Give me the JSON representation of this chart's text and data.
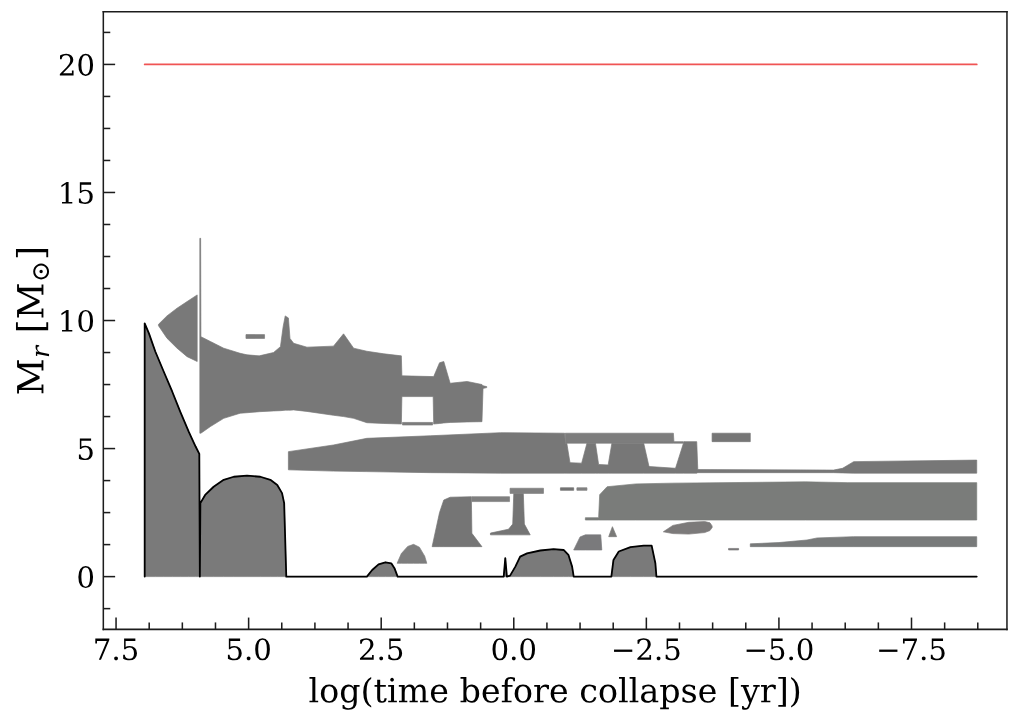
{
  "chart_data": {
    "type": "area",
    "xlabel": "log(time before collapse [yr])",
    "ylabel": "M$_{r}$ [M$_{⊙}$]",
    "xlim": [
      7.74,
      -9.3
    ],
    "ylim": [
      -2.06,
      22.06
    ],
    "xticks": [
      {
        "value": 7.5,
        "label": "7.5"
      },
      {
        "value": 5,
        "label": "5.0"
      },
      {
        "value": 2.5,
        "label": "2.5"
      },
      {
        "value": 0,
        "label": "0.0"
      },
      {
        "value": -2.5,
        "label": "−2.5"
      },
      {
        "value": -5,
        "label": "−5.0"
      },
      {
        "value": -7.5,
        "label": "−7.5"
      }
    ],
    "yticks": [
      0,
      5,
      10,
      15,
      20
    ],
    "series": [
      {
        "color": "#7a7a7a",
        "x": [
          6.96,
          6.96,
          6.88,
          6.76,
          6.6,
          6.44,
          6.29,
          6.13,
          6.0,
          5.93,
          5.92,
          5.91,
          5.82,
          5.66,
          5.47,
          5.28,
          5.03,
          4.78,
          4.59,
          4.46,
          4.37,
          4.33,
          4.29,
          2.77,
          2.67,
          2.55,
          2.42,
          2.31,
          2.25,
          2.19,
          0.19,
          0.16,
          0.13,
          0.07,
          -0.03,
          -0.12,
          -0.25,
          -0.5,
          -0.75,
          -0.94,
          -1.03,
          -1.1,
          -1.13,
          -1.84,
          -1.88,
          -1.98,
          -2.2,
          -2.45,
          -2.6,
          -2.67,
          -2.69,
          -8.73
        ],
        "values": [
          null,
          null,
          null,
          null,
          null,
          null,
          null,
          null,
          null,
          null,
          null,
          null,
          null,
          null,
          null,
          null,
          null,
          null,
          null,
          null,
          null,
          null,
          null,
          null,
          null,
          null,
          null,
          null,
          null,
          null,
          null,
          null,
          null,
          null,
          null,
          null,
          null,
          null,
          null,
          null,
          null,
          null,
          null,
          null,
          null,
          null,
          null,
          null,
          null,
          null,
          null,
          null
        ],
        "lower": [
          0,
          0,
          0,
          0,
          0,
          0,
          0,
          0,
          0,
          0,
          0,
          0,
          0,
          0,
          0,
          0,
          0,
          0,
          0,
          0,
          0,
          0,
          0,
          0,
          0,
          0,
          0,
          0,
          0,
          0,
          0,
          0,
          0,
          0,
          0,
          0,
          0,
          0,
          0,
          0,
          0,
          0,
          0,
          0,
          0,
          0,
          0,
          0,
          0,
          0,
          0,
          0
        ],
        "upper": [
          0,
          9.89,
          9.5,
          8.79,
          8.0,
          7.22,
          6.44,
          5.66,
          5.08,
          4.79,
          0,
          2.87,
          3.19,
          3.51,
          3.78,
          3.9,
          3.94,
          3.9,
          3.78,
          3.58,
          3.26,
          2.87,
          0,
          0,
          0.26,
          0.48,
          0.56,
          0.52,
          0.33,
          0,
          0,
          0.72,
          0,
          0.04,
          0.39,
          0.78,
          0.91,
          1.02,
          1.07,
          1.04,
          0.85,
          0.39,
          0,
          0,
          0.65,
          0.98,
          1.15,
          1.21,
          1.21,
          0.52,
          0,
          0
        ]
      },
      {
        "color": "#797979",
        "x": [
          6.7,
          6.54,
          6.35,
          6.16,
          5.97
        ],
        "values": [
          null,
          null,
          null,
          null,
          null
        ],
        "lower": [
          9.8,
          9.31,
          8.92,
          8.59,
          8.4
        ],
        "upper": [
          9.85,
          10.18,
          10.48,
          10.74,
          11.0
        ]
      },
      {
        "color": "#787878",
        "x": [
          5.92,
          5.905,
          5.9,
          5.72,
          5.47,
          5.16,
          5.03,
          4.8,
          4.53,
          4.4,
          4.35,
          4.31,
          4.25,
          4.22,
          4.15,
          3.9,
          3.4,
          3.21,
          3.02,
          2.77,
          2.45,
          2.12,
          2.11,
          1.52,
          1.51,
          1.4,
          1.32,
          1.2,
          0.88,
          0.6,
          0.58,
          0.51
        ],
        "values": [
          null,
          null,
          null,
          null,
          null,
          null,
          null,
          null,
          null,
          null,
          null,
          null,
          null,
          null,
          null,
          null,
          null,
          null,
          null,
          null,
          null,
          null,
          null,
          null,
          null,
          null,
          null,
          null,
          null,
          null,
          null,
          null
        ],
        "lower": [
          5.6,
          5.6,
          5.6,
          5.86,
          6.18,
          6.38,
          6.4,
          6.44,
          6.47,
          6.48,
          6.49,
          6.5,
          6.5,
          6.5,
          6.51,
          6.45,
          6.3,
          6.25,
          6.18,
          6.01,
          5.98,
          5.96,
          7.03,
          7.03,
          5.96,
          5.98,
          6.0,
          6.02,
          6.04,
          6.05,
          7.35,
          7.38
        ],
        "upper": [
          13.21,
          13.21,
          9.37,
          9.18,
          8.92,
          8.72,
          8.66,
          8.62,
          8.75,
          8.98,
          9.75,
          10.18,
          10.1,
          9.3,
          9.11,
          8.96,
          9.0,
          9.48,
          8.92,
          8.8,
          8.7,
          8.62,
          7.84,
          7.81,
          7.81,
          8.35,
          8.4,
          7.55,
          7.62,
          7.5,
          7.45,
          7.42
        ]
      },
      {
        "color": "#7b7b7b",
        "x": [
          5.05,
          4.7
        ],
        "values": [
          null,
          null
        ],
        "lower": [
          9.3,
          9.3
        ],
        "upper": [
          9.45,
          9.45
        ]
      },
      {
        "color": "#7c7c7c",
        "x": [
          2.1,
          1.53
        ],
        "values": [
          null,
          null
        ],
        "lower": [
          5.92,
          5.92
        ],
        "upper": [
          6.02,
          6.02
        ]
      },
      {
        "color": "#777777",
        "x": [
          4.25,
          3.4,
          2.77,
          1.57,
          0.25,
          -0.96,
          -0.97,
          -1.0,
          -1.06,
          -1.28,
          -1.38,
          -1.54,
          -1.6,
          -1.78,
          -1.85,
          -2.45,
          -2.55,
          -3.05,
          -3.2,
          -3.21,
          -3.45,
          -3.47,
          -6.03,
          -6.2,
          -6.41,
          -8.73
        ],
        "values": [
          null,
          null,
          null,
          null,
          null,
          null,
          null,
          null,
          null,
          null,
          null,
          null,
          null,
          null,
          null,
          null,
          null,
          null,
          null,
          null,
          null,
          null,
          null,
          null,
          null,
          null
        ],
        "lower": [
          4.17,
          4.12,
          4.1,
          4.06,
          4.04,
          4.04,
          4.04,
          4.04,
          4.04,
          4.04,
          4.04,
          4.04,
          4.04,
          4.04,
          4.04,
          4.04,
          4.04,
          4.04,
          4.04,
          4.04,
          4.04,
          4.06,
          4.06,
          4.05,
          4.04,
          4.04
        ],
        "upper": [
          4.88,
          5.14,
          5.4,
          5.5,
          5.62,
          5.6,
          5.21,
          5.21,
          4.45,
          4.43,
          5.21,
          5.21,
          4.38,
          4.36,
          5.21,
          5.21,
          4.3,
          4.23,
          5.21,
          5.27,
          5.27,
          4.18,
          4.16,
          4.23,
          4.49,
          4.55
        ]
      },
      {
        "color": "#7d7d7d",
        "x": [
          -0.97,
          -3.01,
          -3.02,
          -3.2
        ],
        "values": [
          null,
          null,
          null,
          null
        ],
        "lower": [
          5.21,
          5.21,
          5.21,
          5.21
        ],
        "upper": [
          5.6,
          5.6,
          5.27,
          5.27
        ]
      },
      {
        "color": "#767676",
        "x": [
          -3.74,
          -4.46
        ],
        "values": [
          null,
          null
        ],
        "lower": [
          5.27,
          5.27
        ],
        "upper": [
          5.6,
          5.6
        ]
      },
      {
        "color": "#7e7e7e",
        "x": [
          2.2,
          2.12,
          2.0,
          1.89,
          1.78,
          1.68,
          1.64
        ],
        "values": [
          null,
          null,
          null,
          null,
          null,
          null,
          null
        ],
        "lower": [
          0.52,
          0.52,
          0.52,
          0.52,
          0.52,
          0.52,
          0.52
        ],
        "upper": [
          0.52,
          0.9,
          1.18,
          1.26,
          1.15,
          0.8,
          0.52
        ]
      },
      {
        "color": "#757575",
        "x": [
          1.54,
          1.4,
          1.32,
          1.2,
          0.8,
          0.79,
          0.6
        ],
        "values": [
          null,
          null,
          null,
          null,
          null,
          null,
          null
        ],
        "lower": [
          1.17,
          1.17,
          1.17,
          1.17,
          1.17,
          1.17,
          1.17
        ],
        "upper": [
          1.17,
          2.5,
          2.99,
          3.1,
          3.12,
          1.69,
          1.17
        ]
      },
      {
        "color": "#7f7f7f",
        "x": [
          0.79,
          0.08
        ],
        "values": [
          null,
          null
        ],
        "lower": [
          2.93,
          2.93
        ],
        "upper": [
          3.12,
          3.12
        ]
      },
      {
        "color": "#747474",
        "x": [
          0.44,
          0.1,
          0.02,
          0.0,
          -0.18,
          -0.2,
          -0.31
        ],
        "values": [
          null,
          null,
          null,
          null,
          null,
          null,
          null
        ],
        "lower": [
          1.63,
          1.63,
          1.63,
          1.63,
          1.63,
          1.63,
          1.63
        ],
        "upper": [
          1.7,
          1.85,
          2.05,
          3.25,
          3.25,
          2.05,
          1.63
        ]
      },
      {
        "color": "#808080",
        "x": [
          0.07,
          -0.56
        ],
        "values": [
          null,
          null
        ],
        "lower": [
          3.25,
          3.25
        ],
        "upper": [
          3.45,
          3.45
        ]
      },
      {
        "color": "#737373",
        "x": [
          -0.88,
          -1.13
        ],
        "values": [
          null,
          null
        ],
        "lower": [
          3.37,
          3.37
        ],
        "upper": [
          3.47,
          3.47
        ]
      },
      {
        "color": "#818181",
        "x": [
          -1.19,
          -1.38
        ],
        "values": [
          null,
          null
        ],
        "lower": [
          3.37,
          3.37
        ],
        "upper": [
          3.47,
          3.47
        ]
      },
      {
        "color": "#7a7a7c",
        "x": [
          -1.13,
          -1.25,
          -1.35,
          -1.64,
          -1.66
        ],
        "values": [
          null,
          null,
          null,
          null,
          null
        ],
        "lower": [
          1.04,
          1.04,
          1.04,
          1.04,
          1.04
        ],
        "upper": [
          1.04,
          1.55,
          1.63,
          1.63,
          1.04
        ]
      },
      {
        "color": "#7a7a78",
        "x": [
          -1.79,
          -1.86,
          -1.94
        ],
        "values": [
          null,
          null,
          null
        ],
        "lower": [
          1.56,
          1.56,
          1.56
        ],
        "upper": [
          1.56,
          1.95,
          1.56
        ]
      },
      {
        "color": "#7a7c7a",
        "x": [
          -1.35,
          -1.6,
          -1.62,
          -1.76,
          -2.3,
          -3.0,
          -5.5,
          -6.3,
          -8.73
        ],
        "values": [
          null,
          null,
          null,
          null,
          null,
          null,
          null,
          null,
          null
        ],
        "lower": [
          2.21,
          2.21,
          2.21,
          2.21,
          2.21,
          2.21,
          2.21,
          2.21,
          2.21
        ],
        "upper": [
          2.3,
          2.3,
          3.2,
          3.51,
          3.62,
          3.65,
          3.7,
          3.67,
          3.67
        ]
      },
      {
        "color": "#7c7a7a",
        "x": [
          -2.82,
          -3.0,
          -3.3,
          -3.6,
          -3.7,
          -3.74
        ],
        "values": [
          null,
          null,
          null,
          null,
          null,
          null
        ],
        "lower": [
          1.75,
          1.68,
          1.66,
          1.72,
          1.8,
          1.92
        ],
        "upper": [
          1.75,
          2.0,
          2.12,
          2.15,
          2.1,
          1.98
        ]
      },
      {
        "color": "#787a7a",
        "x": [
          -4.46,
          -5.0,
          -5.53,
          -5.72,
          -6.41,
          -8.73
        ],
        "values": [
          null,
          null,
          null,
          null,
          null,
          null
        ],
        "lower": [
          1.17,
          1.17,
          1.17,
          1.17,
          1.17,
          1.17
        ],
        "upper": [
          1.28,
          1.33,
          1.43,
          1.51,
          1.56,
          1.56
        ]
      },
      {
        "color": "#7a787a",
        "x": [
          -4.05,
          -4.24
        ],
        "values": [
          null,
          null
        ],
        "lower": [
          1.04,
          1.04
        ],
        "upper": [
          1.1,
          1.1
        ]
      },
      {
        "type": "line",
        "color": "#000000",
        "x": [
          6.96,
          6.96,
          6.88,
          6.76,
          6.6,
          6.44,
          6.29,
          6.13,
          6.0,
          5.93,
          5.92,
          5.91,
          5.82,
          5.66,
          5.47,
          5.28,
          5.03,
          4.78,
          4.59,
          4.46,
          4.37,
          4.33,
          4.29,
          2.77,
          2.67,
          2.55,
          2.42,
          2.31,
          2.25,
          2.19,
          0.19,
          0.16,
          0.13,
          0.07,
          -0.03,
          -0.12,
          -0.25,
          -0.5,
          -0.75,
          -0.94,
          -1.03,
          -1.1,
          -1.13,
          -1.84,
          -1.88,
          -1.98,
          -2.2,
          -2.45,
          -2.6,
          -2.67,
          -2.69,
          -8.73
        ],
        "values": [
          0,
          9.89,
          9.5,
          8.79,
          8.0,
          7.22,
          6.44,
          5.66,
          5.08,
          4.79,
          0,
          2.87,
          3.19,
          3.51,
          3.78,
          3.9,
          3.94,
          3.9,
          3.78,
          3.58,
          3.26,
          2.87,
          0,
          0,
          0.26,
          0.48,
          0.56,
          0.52,
          0.33,
          0,
          0,
          0.72,
          0,
          0.04,
          0.39,
          0.78,
          0.91,
          1.02,
          1.07,
          1.04,
          0.85,
          0.39,
          0,
          0,
          0.65,
          0.98,
          1.15,
          1.21,
          1.21,
          0.52,
          0,
          0
        ]
      },
      {
        "type": "line",
        "color": "#f05454",
        "x": [
          6.96,
          -8.73
        ],
        "values": [
          20,
          20
        ]
      }
    ]
  }
}
